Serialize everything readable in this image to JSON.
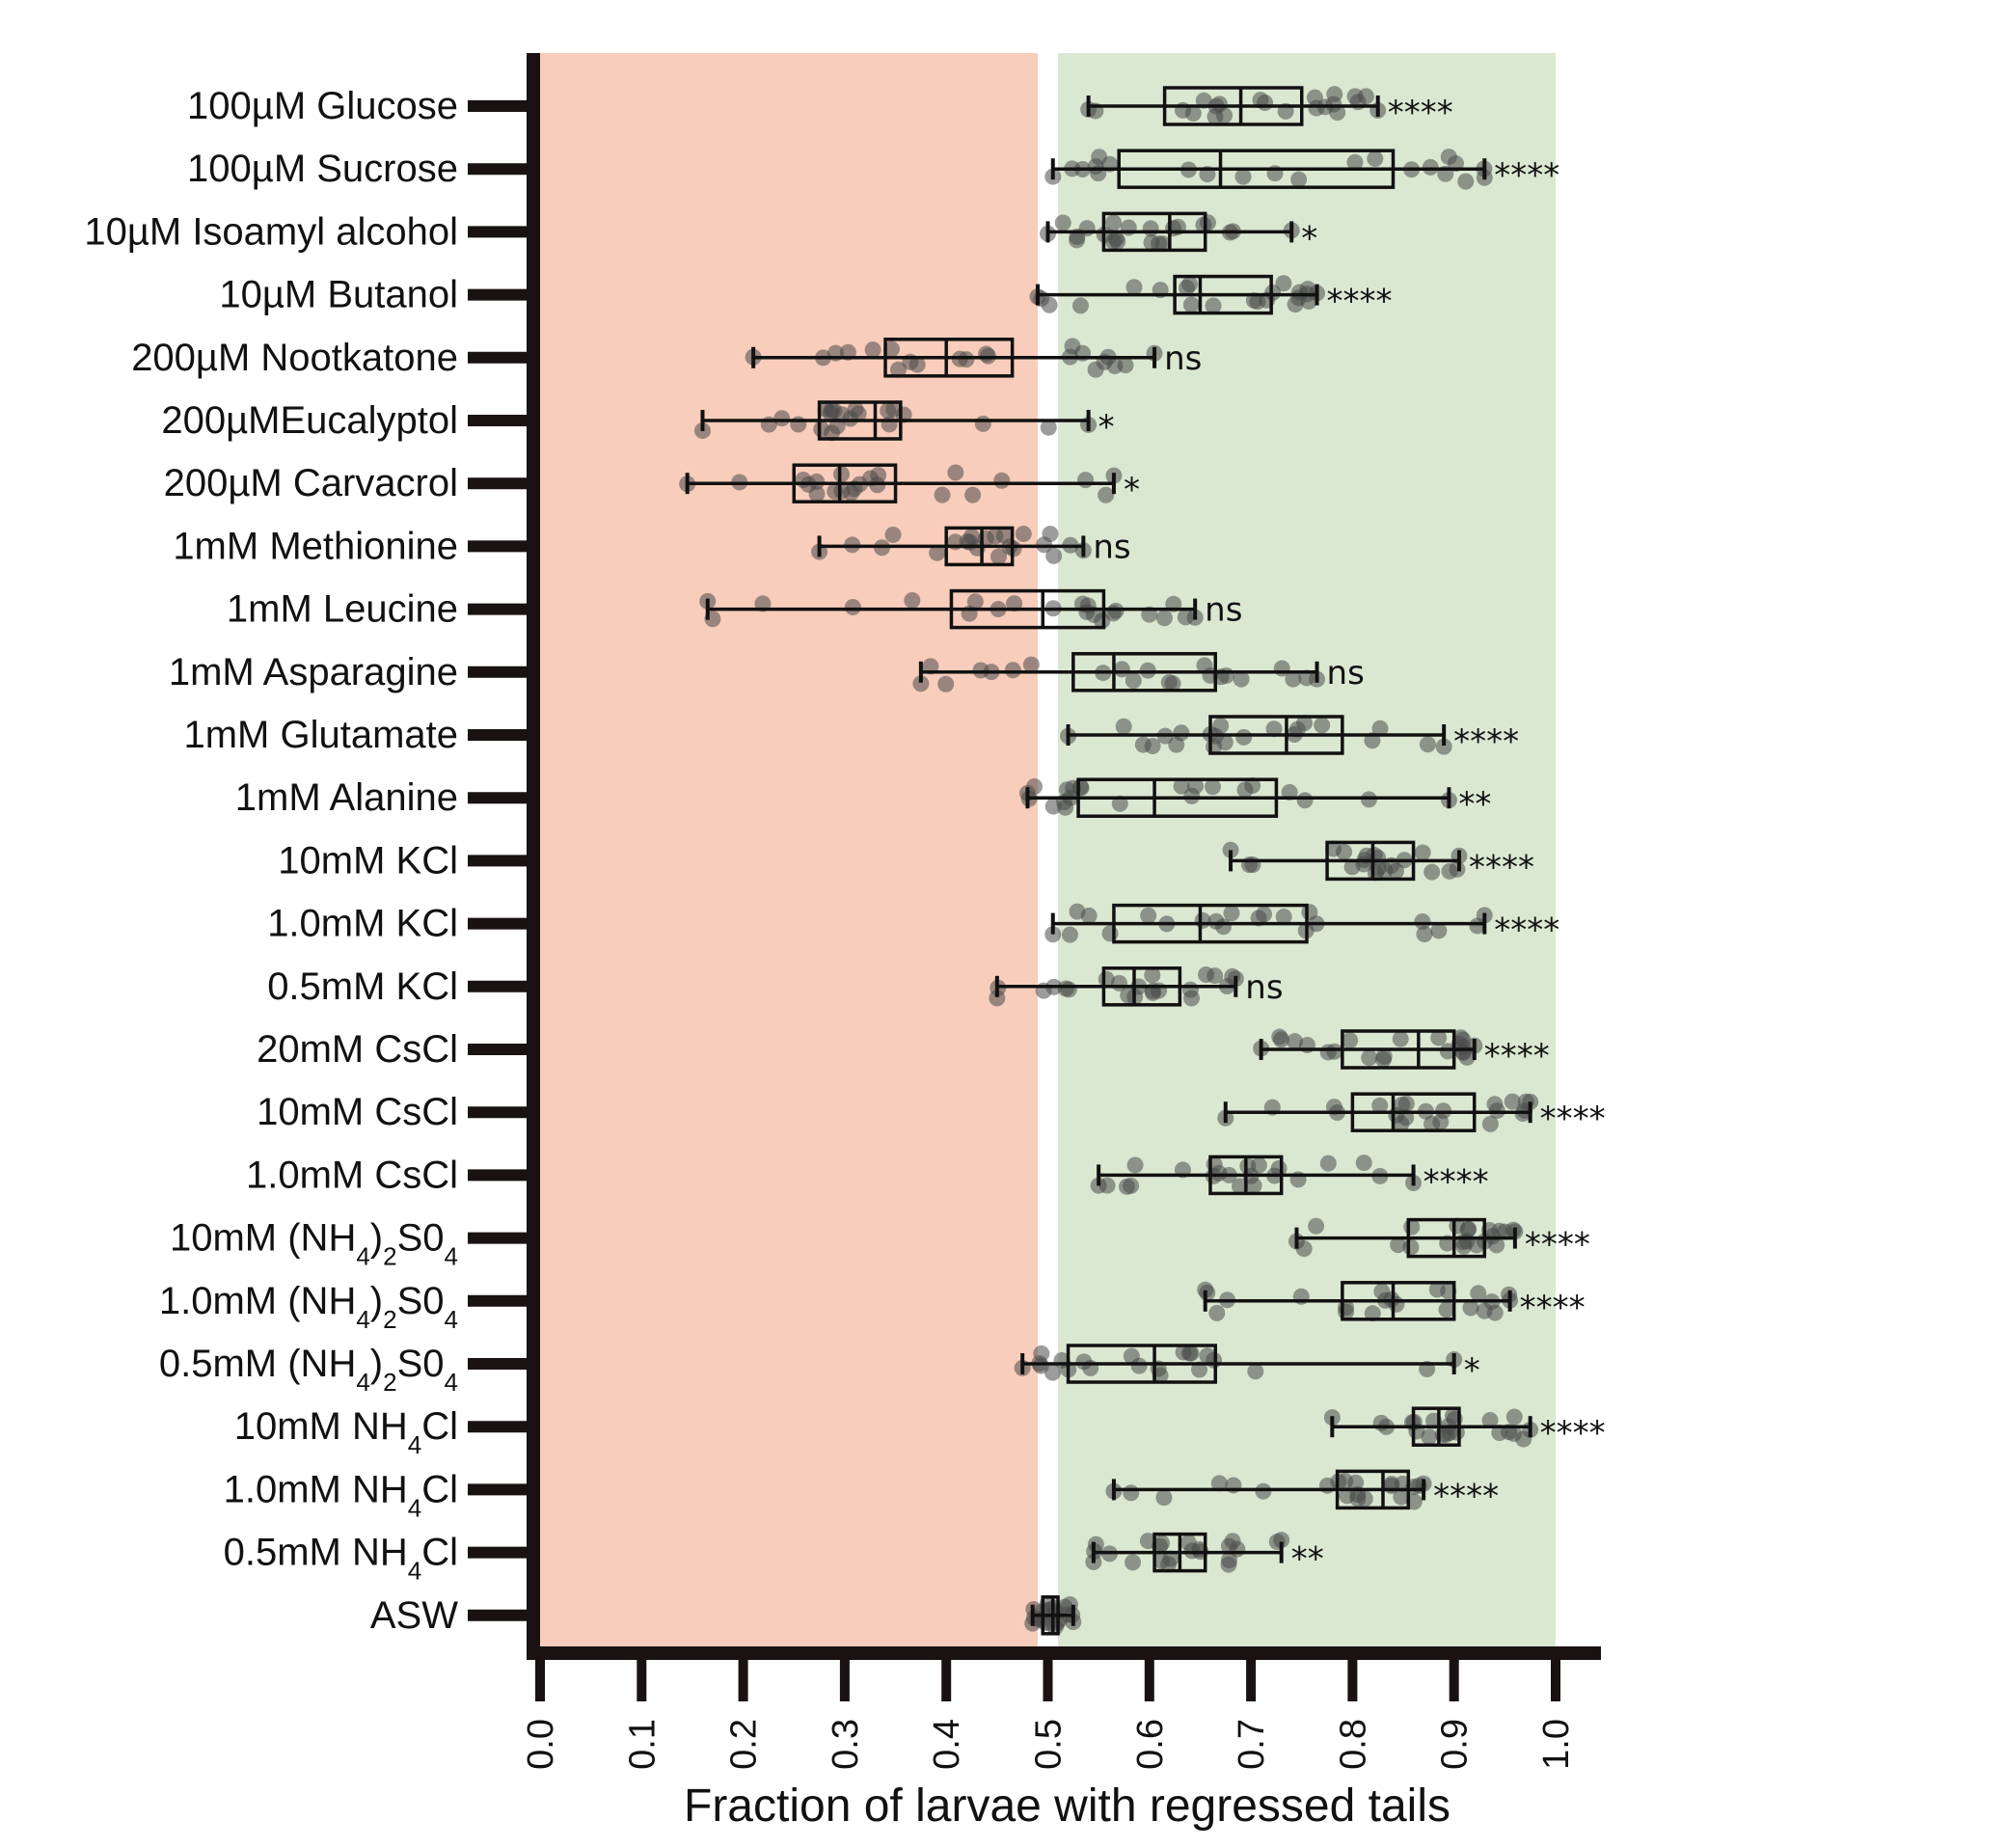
{
  "chart_data": {
    "type": "box",
    "orientation": "horizontal",
    "xlabel": "Fraction of larvae with regressed tails",
    "xlim": [
      0,
      1.0
    ],
    "xticks": [
      "0.0",
      "0.1",
      "0.2",
      "0.3",
      "0.4",
      "0.5",
      "0.6",
      "0.7",
      "0.8",
      "0.9",
      "1.0"
    ],
    "regions": [
      {
        "from": 0.0,
        "to": 0.49,
        "color": "#f8cdbb"
      },
      {
        "from": 0.51,
        "to": 1.0,
        "color": "#dae8d2"
      }
    ],
    "colors": {
      "axis": "#1a1212",
      "box": "#111111",
      "points": "#4a4a4a"
    },
    "categories": [
      {
        "label": "100µM Glucose",
        "min": 0.54,
        "q1": 0.615,
        "median": 0.69,
        "q3": 0.75,
        "max": 0.825,
        "sig": "****"
      },
      {
        "label": "100µM Sucrose",
        "min": 0.505,
        "q1": 0.57,
        "median": 0.67,
        "q3": 0.84,
        "max": 0.93,
        "sig": "****"
      },
      {
        "label": "10µM Isoamyl alcohol",
        "min": 0.5,
        "q1": 0.555,
        "median": 0.62,
        "q3": 0.655,
        "max": 0.74,
        "sig": "*"
      },
      {
        "label": "10µM Butanol",
        "min": 0.49,
        "q1": 0.625,
        "median": 0.65,
        "q3": 0.72,
        "max": 0.765,
        "sig": "****"
      },
      {
        "label": "200µM Nootkatone",
        "min": 0.21,
        "q1": 0.34,
        "median": 0.4,
        "q3": 0.465,
        "max": 0.605,
        "sig": "ns"
      },
      {
        "label": "200µMEucalyptol",
        "min": 0.16,
        "q1": 0.275,
        "median": 0.33,
        "q3": 0.355,
        "max": 0.54,
        "sig": "*"
      },
      {
        "label": "200µM Carvacrol",
        "min": 0.145,
        "q1": 0.25,
        "median": 0.295,
        "q3": 0.35,
        "max": 0.565,
        "sig": "*"
      },
      {
        "label": "1mM Methionine",
        "min": 0.275,
        "q1": 0.4,
        "median": 0.435,
        "q3": 0.465,
        "max": 0.535,
        "sig": "ns"
      },
      {
        "label": "1mM Leucine",
        "min": 0.165,
        "q1": 0.405,
        "median": 0.495,
        "q3": 0.555,
        "max": 0.645,
        "sig": "ns"
      },
      {
        "label": "1mM Asparagine",
        "min": 0.375,
        "q1": 0.525,
        "median": 0.565,
        "q3": 0.665,
        "max": 0.765,
        "sig": "ns"
      },
      {
        "label": "1mM Glutamate",
        "min": 0.52,
        "q1": 0.66,
        "median": 0.735,
        "q3": 0.79,
        "max": 0.89,
        "sig": "****"
      },
      {
        "label": "1mM Alanine",
        "min": 0.48,
        "q1": 0.53,
        "median": 0.605,
        "q3": 0.725,
        "max": 0.895,
        "sig": "**"
      },
      {
        "label": "10mM KCl",
        "min": 0.68,
        "q1": 0.775,
        "median": 0.82,
        "q3": 0.86,
        "max": 0.905,
        "sig": "****"
      },
      {
        "label": "1.0mM KCl",
        "min": 0.505,
        "q1": 0.565,
        "median": 0.65,
        "q3": 0.755,
        "max": 0.93,
        "sig": "****"
      },
      {
        "label": "0.5mM KCl",
        "min": 0.45,
        "q1": 0.555,
        "median": 0.585,
        "q3": 0.63,
        "max": 0.685,
        "sig": "ns"
      },
      {
        "label": "20mM CsCl",
        "min": 0.71,
        "q1": 0.79,
        "median": 0.865,
        "q3": 0.9,
        "max": 0.92,
        "sig": "****"
      },
      {
        "label": "10mM CsCl",
        "min": 0.675,
        "q1": 0.8,
        "median": 0.84,
        "q3": 0.92,
        "max": 0.975,
        "sig": "****"
      },
      {
        "label": "1.0mM CsCl",
        "min": 0.55,
        "q1": 0.66,
        "median": 0.695,
        "q3": 0.73,
        "max": 0.86,
        "sig": "****"
      },
      {
        "label": "10mM (NH4)2S04",
        "min": 0.745,
        "q1": 0.855,
        "median": 0.9,
        "q3": 0.93,
        "max": 0.96,
        "sig": "****"
      },
      {
        "label": "1.0mM (NH4)2S04",
        "min": 0.655,
        "q1": 0.79,
        "median": 0.84,
        "q3": 0.9,
        "max": 0.955,
        "sig": "****"
      },
      {
        "label": "0.5mM (NH4)2S04",
        "min": 0.475,
        "q1": 0.52,
        "median": 0.605,
        "q3": 0.665,
        "max": 0.9,
        "sig": "*"
      },
      {
        "label": "10mM NH4Cl",
        "min": 0.78,
        "q1": 0.86,
        "median": 0.885,
        "q3": 0.905,
        "max": 0.975,
        "sig": "****"
      },
      {
        "label": "1.0mM NH4Cl",
        "min": 0.565,
        "q1": 0.785,
        "median": 0.83,
        "q3": 0.855,
        "max": 0.87,
        "sig": "****"
      },
      {
        "label": "0.5mM NH4Cl",
        "min": 0.545,
        "q1": 0.605,
        "median": 0.63,
        "q3": 0.655,
        "max": 0.73,
        "sig": "**"
      },
      {
        "label": "ASW",
        "min": 0.485,
        "q1": 0.495,
        "median": 0.505,
        "q3": 0.51,
        "max": 0.525,
        "sig": ""
      }
    ]
  }
}
